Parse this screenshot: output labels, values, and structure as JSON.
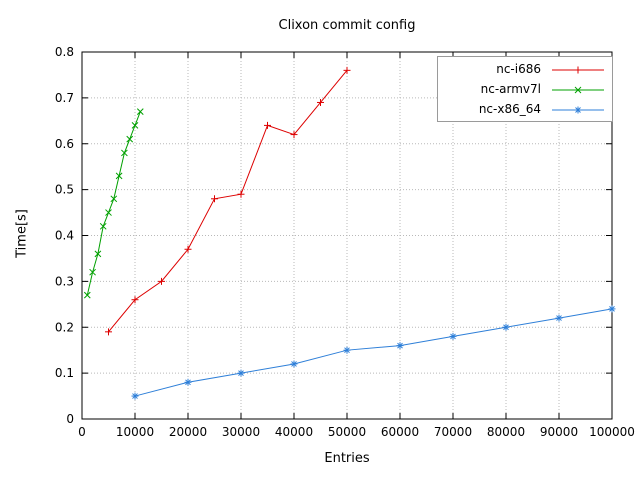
{
  "chart_data": {
    "type": "line",
    "title": "Clixon commit config",
    "xlabel": "Entries",
    "ylabel": "Time[s]",
    "xlim": [
      0,
      100000
    ],
    "ylim": [
      0,
      0.8
    ],
    "xtick_step": 10000,
    "ytick_step": 0.1,
    "grid": true,
    "grid_color": "#b9b9b9",
    "legend_position": "top-right",
    "series": [
      {
        "name": "nc-i686",
        "color": "#dd0000",
        "marker": "plus",
        "x": [
          5000,
          10000,
          15000,
          20000,
          25000,
          30000,
          35000,
          40000,
          45000,
          50000
        ],
        "y": [
          0.19,
          0.26,
          0.3,
          0.37,
          0.48,
          0.49,
          0.64,
          0.62,
          0.69,
          0.76
        ]
      },
      {
        "name": "nc-armv7l",
        "color": "#00a000",
        "marker": "cross",
        "x": [
          1000,
          2000,
          3000,
          4000,
          5000,
          6000,
          7000,
          8000,
          9000,
          10000,
          11000
        ],
        "y": [
          0.27,
          0.32,
          0.36,
          0.42,
          0.45,
          0.48,
          0.53,
          0.58,
          0.61,
          0.64,
          0.67
        ]
      },
      {
        "name": "nc-x86_64",
        "color": "#2e7fd8",
        "marker": "asterisk",
        "x": [
          10000,
          20000,
          30000,
          40000,
          50000,
          60000,
          70000,
          80000,
          90000,
          100000
        ],
        "y": [
          0.05,
          0.08,
          0.1,
          0.12,
          0.15,
          0.16,
          0.18,
          0.2,
          0.22,
          0.24
        ]
      }
    ]
  }
}
